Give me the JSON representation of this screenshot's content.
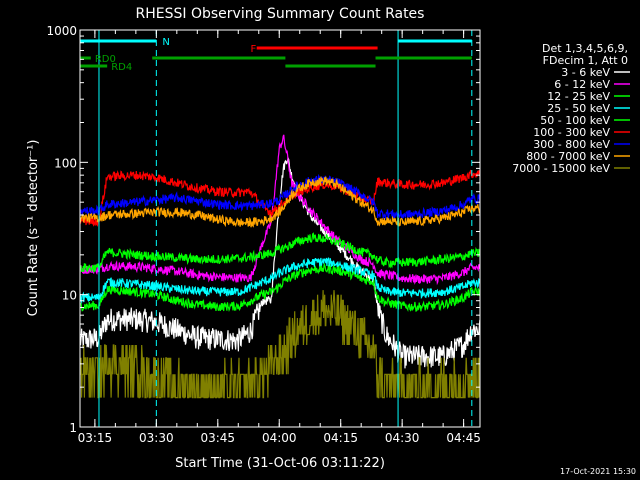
{
  "chart_data": {
    "type": "line",
    "title": "RHESSI Observing Summary Count Rates",
    "xlabel": "Start Time (31-Oct-06 03:11:22)",
    "ylabel": "Count Rate (s⁻¹ detector⁻¹)",
    "yscale": "log",
    "ylim": [
      1,
      1000
    ],
    "xlim": [
      "03:11:22",
      "04:49:00"
    ],
    "x_ticks": [
      "03:15",
      "03:30",
      "03:45",
      "04:00",
      "04:15",
      "04:30",
      "04:45"
    ],
    "y_ticks": [
      "1",
      "10",
      "100",
      "1000"
    ],
    "legend_position": "right",
    "legend_header": [
      "Det 1,3,4,5,6,9,",
      "FDecim 1, Att 0"
    ],
    "footer_date": "17-Oct-2021 15:30",
    "background": "#000000",
    "axis_color": "#ffffff",
    "night_vlines": [
      "03:16:00",
      "03:30:00",
      "04:29:00",
      "04:47:00"
    ],
    "night_vline_color": "#00ffff",
    "flags": [
      {
        "label": "N",
        "color": "#00ffff",
        "level": 1,
        "segments": [
          [
            "03:11:22",
            "03:30:00"
          ],
          [
            "04:29:00",
            "04:47:00"
          ]
        ],
        "label_at": "03:31:00"
      },
      {
        "label": "F",
        "color": "#ff0000",
        "level": 2,
        "segments": [
          [
            "03:54:30",
            "04:24:00"
          ]
        ],
        "label_at": "03:52:30"
      },
      {
        "label": "RD0",
        "color": "#00a000",
        "level": 3,
        "segments": [
          [
            "03:11:22",
            "03:14:00"
          ],
          [
            "03:29:00",
            "04:01:30"
          ],
          [
            "04:23:30",
            "04:47:00"
          ]
        ],
        "label_at": "03:14:30"
      },
      {
        "label": "RD4",
        "color": "#00a000",
        "level": 4,
        "segments": [
          [
            "03:11:22",
            "03:18:00"
          ],
          [
            "04:01:30",
            "04:23:30"
          ]
        ],
        "label_at": "03:18:30"
      }
    ],
    "time_points": [
      "03:12",
      "03:16",
      "03:18",
      "03:25",
      "03:30",
      "03:35",
      "03:40",
      "03:45",
      "03:50",
      "03:53",
      "03:56",
      "03:58",
      "04:00",
      "04:01",
      "04:02",
      "04:03",
      "04:05",
      "04:08",
      "04:11",
      "04:14",
      "04:17",
      "04:20",
      "04:23",
      "04:24",
      "04:26",
      "04:30",
      "04:35",
      "04:40",
      "04:45",
      "04:47"
    ],
    "series": [
      {
        "name": "3 - 6 keV",
        "color": "#ffffff",
        "values": [
          4.5,
          4.7,
          6.5,
          6.5,
          6.2,
          5.4,
          4.7,
          4.6,
          4.5,
          5.3,
          9,
          9,
          50,
          90,
          110,
          80,
          55,
          38,
          30,
          24,
          19,
          15,
          13,
          8,
          5,
          3.4,
          3.4,
          3.4,
          4.2,
          5.5
        ]
      },
      {
        "name": "6 - 12 keV",
        "color": "#ff00ff",
        "values": [
          15.5,
          15.6,
          16.5,
          16.3,
          15.7,
          15,
          14.1,
          13.6,
          13.4,
          13.4,
          25,
          35,
          125,
          155,
          110,
          70,
          55,
          42,
          33,
          26,
          22,
          18.5,
          17,
          14.5,
          14.2,
          13.3,
          13.1,
          13.3,
          14.7,
          16
        ]
      },
      {
        "name": "12 - 25 keV",
        "color": "#00ff00",
        "values": [
          8.2,
          8.3,
          11,
          10.5,
          10,
          9,
          8.4,
          8.1,
          8.2,
          9,
          10,
          10.5,
          11.5,
          12.5,
          13,
          13.6,
          14.5,
          15.5,
          15.7,
          15.4,
          14.5,
          13.2,
          12.5,
          9.5,
          8.8,
          8.2,
          8.1,
          8.4,
          9.5,
          10.5
        ]
      },
      {
        "name": "25 - 50 keV",
        "color": "#00ffff",
        "values": [
          9.5,
          9.5,
          12.5,
          12,
          11.6,
          11,
          10.6,
          10.5,
          10.5,
          11.3,
          12.5,
          13.2,
          14.5,
          15,
          15.5,
          16,
          16.7,
          17.5,
          17.8,
          17.2,
          16,
          15,
          14,
          11.5,
          10.6,
          10.3,
          10.3,
          10.5,
          11.5,
          12.3
        ]
      },
      {
        "name": "50 - 100 keV",
        "color": "#00ff00",
        "values": [
          16,
          16,
          21,
          20,
          19.5,
          19,
          18.5,
          18.5,
          18.8,
          19.2,
          20,
          20.5,
          22,
          22.5,
          23,
          24,
          25.5,
          27,
          26.5,
          25,
          23,
          21,
          19.8,
          18.2,
          17.5,
          17.5,
          17.8,
          18.5,
          19.5,
          20.5
        ]
      },
      {
        "name": "100 - 300 keV",
        "color": "#ff0000",
        "values": [
          36,
          36,
          78,
          80,
          77,
          70,
          64,
          60,
          59,
          60,
          46,
          42,
          46,
          50,
          52,
          56,
          60,
          65,
          68,
          66,
          60,
          54,
          50,
          72,
          70,
          68,
          68,
          70,
          77,
          82
        ]
      },
      {
        "name": "300 - 800 keV",
        "color": "#0000ff",
        "values": [
          43,
          43,
          48,
          50,
          52,
          54,
          51,
          48,
          47,
          47,
          48,
          49,
          52,
          55,
          58,
          62,
          68,
          73,
          74,
          71,
          64,
          57,
          50,
          41,
          41,
          40,
          41,
          43,
          48,
          53
        ]
      },
      {
        "name": "800 - 7000 keV",
        "color": "#ffa500",
        "values": [
          38,
          38,
          40,
          41,
          42,
          42,
          40,
          37,
          35,
          35,
          36,
          38,
          42,
          46,
          51,
          57,
          64,
          71,
          73,
          68,
          58,
          50,
          43,
          36,
          36,
          35,
          36,
          38,
          42,
          45
        ]
      },
      {
        "name": "7000 - 15000 keV",
        "color": "#808000",
        "values": [
          2.6,
          2.5,
          3.1,
          2.8,
          2.4,
          2.1,
          2.0,
          2.0,
          2.0,
          2.1,
          2.5,
          2.8,
          3.4,
          3.7,
          4.1,
          4.7,
          5.6,
          6.8,
          7.6,
          7.2,
          6,
          4.8,
          3.6,
          2.5,
          2.2,
          2.0,
          2.0,
          2.1,
          2.3,
          2.5
        ]
      }
    ]
  }
}
